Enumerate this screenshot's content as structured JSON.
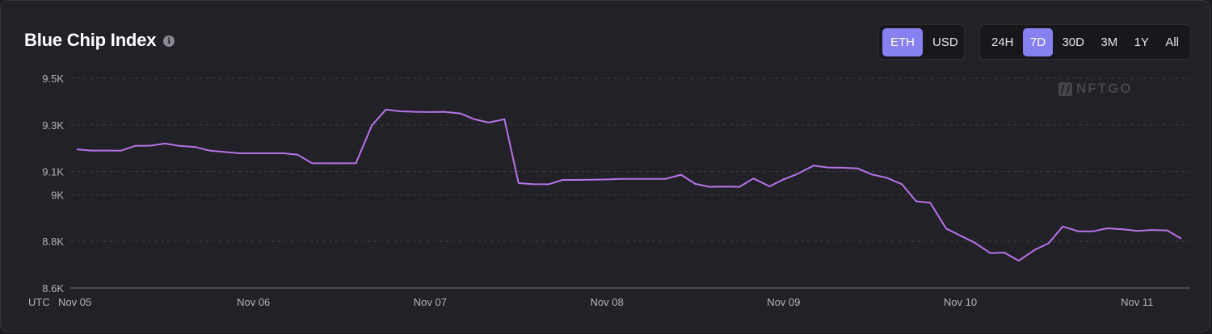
{
  "header": {
    "title": "Blue Chip Index",
    "info_icon": "info-icon"
  },
  "currency_toggle": {
    "options": [
      "ETH",
      "USD"
    ],
    "selected": "ETH"
  },
  "range_toggle": {
    "options": [
      "24H",
      "7D",
      "30D",
      "3M",
      "1Y",
      "All"
    ],
    "selected": "7D"
  },
  "watermark": {
    "text": "NFTGO"
  },
  "colors": {
    "line": "#b774e8",
    "accent": "#8680f0",
    "grid": "#3b3a42",
    "axis": "#6f6e77"
  },
  "chart_data": {
    "type": "line",
    "title": "Blue Chip Index",
    "timezone_label": "UTC",
    "xlabel": "",
    "ylabel": "",
    "y_ticks": [
      {
        "value": 8600,
        "label": "8.6K"
      },
      {
        "value": 8800,
        "label": "8.8K"
      },
      {
        "value": 9000,
        "label": "9K"
      },
      {
        "value": 9100,
        "label": "9.1K"
      },
      {
        "value": 9300,
        "label": "9.3K"
      },
      {
        "value": 9500,
        "label": "9.5K"
      }
    ],
    "x_ticks": [
      {
        "day": 0,
        "label": "Nov 05"
      },
      {
        "day": 1,
        "label": "Nov 06"
      },
      {
        "day": 2,
        "label": "Nov 07"
      },
      {
        "day": 3,
        "label": "Nov 08"
      },
      {
        "day": 4,
        "label": "Nov 09"
      },
      {
        "day": 5,
        "label": "Nov 10"
      },
      {
        "day": 6,
        "label": "Nov 11"
      }
    ],
    "grid": true,
    "series": [
      {
        "name": "",
        "points": [
          [
            0.0,
            9195
          ],
          [
            0.08,
            9190
          ],
          [
            0.17,
            9190
          ],
          [
            0.25,
            9189
          ],
          [
            0.33,
            9210
          ],
          [
            0.42,
            9211
          ],
          [
            0.5,
            9220
          ],
          [
            0.58,
            9210
          ],
          [
            0.67,
            9205
          ],
          [
            0.75,
            9190
          ],
          [
            0.83,
            9184
          ],
          [
            0.92,
            9178
          ],
          [
            1.0,
            9178
          ],
          [
            1.08,
            9178
          ],
          [
            1.17,
            9178
          ],
          [
            1.25,
            9172
          ],
          [
            1.33,
            9136
          ],
          [
            1.42,
            9135
          ],
          [
            1.5,
            9135
          ],
          [
            1.58,
            9136
          ],
          [
            1.67,
            9298
          ],
          [
            1.75,
            9366
          ],
          [
            1.83,
            9358
          ],
          [
            1.92,
            9356
          ],
          [
            2.0,
            9355
          ],
          [
            2.08,
            9356
          ],
          [
            2.17,
            9349
          ],
          [
            2.25,
            9324
          ],
          [
            2.33,
            9310
          ],
          [
            2.42,
            9324
          ],
          [
            2.5,
            9050
          ],
          [
            2.58,
            9046
          ],
          [
            2.67,
            9045
          ],
          [
            2.75,
            9064
          ],
          [
            2.83,
            9064
          ],
          [
            2.92,
            9065
          ],
          [
            3.0,
            9066
          ],
          [
            3.08,
            9068
          ],
          [
            3.17,
            9068
          ],
          [
            3.25,
            9068
          ],
          [
            3.33,
            9068
          ],
          [
            3.42,
            9086
          ],
          [
            3.5,
            9047
          ],
          [
            3.58,
            9034
          ],
          [
            3.67,
            9035
          ],
          [
            3.75,
            9034
          ],
          [
            3.83,
            9070
          ],
          [
            3.92,
            9036
          ],
          [
            4.0,
            9066
          ],
          [
            4.08,
            9090
          ],
          [
            4.17,
            9125
          ],
          [
            4.25,
            9117
          ],
          [
            4.33,
            9116
          ],
          [
            4.42,
            9113
          ],
          [
            4.5,
            9087
          ],
          [
            4.58,
            9074
          ],
          [
            4.67,
            9045
          ],
          [
            4.75,
            8972
          ],
          [
            4.83,
            8966
          ],
          [
            4.92,
            8855
          ],
          [
            5.0,
            8825
          ],
          [
            5.08,
            8795
          ],
          [
            5.17,
            8750
          ],
          [
            5.25,
            8752
          ],
          [
            5.33,
            8717
          ],
          [
            5.42,
            8763
          ],
          [
            5.5,
            8792
          ],
          [
            5.58,
            8864
          ],
          [
            5.67,
            8843
          ],
          [
            5.75,
            8843
          ],
          [
            5.83,
            8856
          ],
          [
            5.92,
            8852
          ],
          [
            6.0,
            8845
          ],
          [
            6.08,
            8849
          ],
          [
            6.17,
            8847
          ],
          [
            6.25,
            8812
          ]
        ]
      }
    ],
    "ylim": [
      8600,
      9500
    ],
    "xlim": [
      0,
      6.25
    ]
  }
}
